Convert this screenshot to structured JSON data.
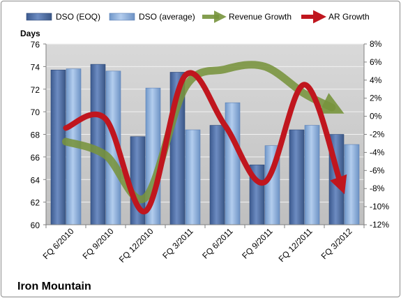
{
  "chart_data": {
    "type": "bar",
    "title": "Iron Mountain",
    "ylabel": "Days",
    "categories": [
      "FQ 6/2010",
      "FQ 9/2010",
      "FQ 12/2010",
      "FQ 3/2011",
      "FQ 6/2011",
      "FQ 9/2011",
      "FQ 12/2011",
      "FQ 3/2012"
    ],
    "ylim": [
      60,
      76
    ],
    "yticks": [
      60,
      62,
      64,
      66,
      68,
      70,
      72,
      74,
      76
    ],
    "y2lim": [
      -12,
      8
    ],
    "y2ticks": [
      -12,
      -10,
      -8,
      -6,
      -4,
      -2,
      0,
      2,
      4,
      6,
      8
    ],
    "y2_unit": "%",
    "legend_position": "top",
    "grid": true,
    "series": [
      {
        "name": "DSO (EOQ)",
        "axis": "left",
        "kind": "bar",
        "color": "#4f6fa8",
        "values": [
          73.7,
          74.2,
          67.8,
          73.5,
          68.8,
          65.3,
          68.4,
          68.0
        ]
      },
      {
        "name": "DSO (average)",
        "axis": "left",
        "kind": "bar",
        "color": "#8fb4e3",
        "values": [
          73.8,
          73.6,
          72.1,
          68.4,
          70.8,
          67.0,
          68.8,
          67.1
        ]
      },
      {
        "name": "Revenue Growth",
        "axis": "right",
        "kind": "line",
        "color": "#77933c",
        "values": [
          -2.8,
          -4.3,
          -9.0,
          3.2,
          5.2,
          5.5,
          2.5,
          0.3
        ]
      },
      {
        "name": "AR Growth",
        "axis": "right",
        "kind": "line",
        "color": "#c0161e",
        "values": [
          -1.3,
          -0.3,
          -10.5,
          4.5,
          -1.0,
          -7.3,
          3.5,
          -8.5
        ]
      }
    ]
  }
}
